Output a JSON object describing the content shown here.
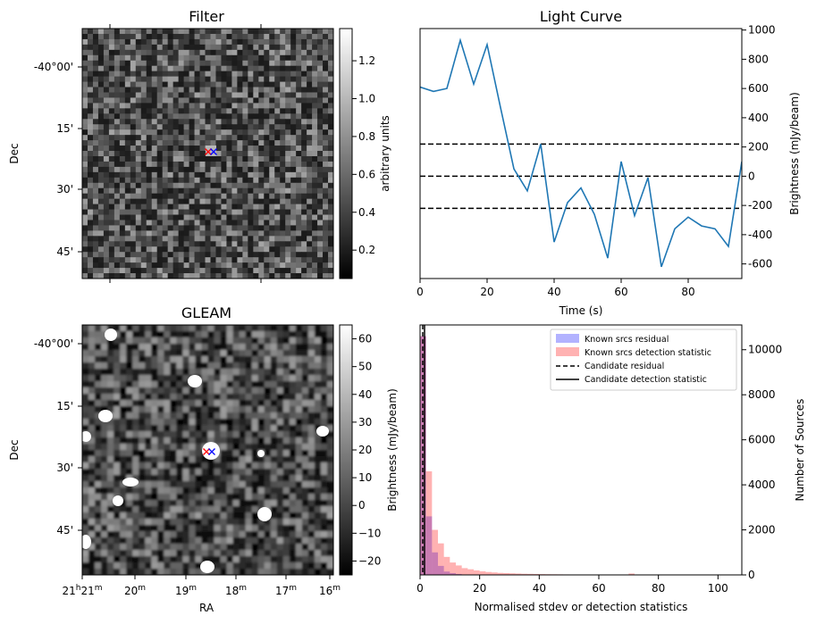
{
  "chart_data": [
    {
      "type": "heatmap",
      "title": "Filter",
      "xlabel": "",
      "ylabel": "Dec",
      "y_ticks": [
        "-40°00'",
        "15'",
        "30'",
        "45'"
      ],
      "colorbar": {
        "label": "arbitrary units",
        "range": [
          0.05,
          1.37
        ],
        "ticks": [
          "0.2",
          "0.4",
          "0.6",
          "0.8",
          "1.0",
          "1.2"
        ],
        "colormap": "gray"
      },
      "markers": [
        {
          "symbol": "x",
          "color": "#ff0000"
        },
        {
          "symbol": "x",
          "color": "#0000ff"
        }
      ]
    },
    {
      "type": "line",
      "title": "Light Curve",
      "xlabel": "Time (s)",
      "ylabel": "Brightness (mJy/beam)",
      "xlim": [
        0,
        96
      ],
      "ylim": [
        -700,
        1010
      ],
      "x_ticks": [
        "0",
        "20",
        "40",
        "60",
        "80"
      ],
      "y_ticks": [
        "-600",
        "-400",
        "-200",
        "0",
        "200",
        "400",
        "600",
        "800",
        "1000"
      ],
      "series": [
        {
          "color": "#1f77b4",
          "x": [
            0,
            4,
            8,
            12,
            16,
            20,
            24,
            28,
            32,
            36,
            40,
            44,
            48,
            52,
            56,
            60,
            64,
            68,
            72,
            76,
            80,
            84,
            88,
            92,
            96
          ],
          "y": [
            610,
            580,
            600,
            930,
            630,
            900,
            470,
            50,
            -100,
            220,
            -450,
            -180,
            -80,
            -260,
            -560,
            100,
            -270,
            -10,
            -620,
            -360,
            -280,
            -340,
            -360,
            -480,
            100
          ]
        }
      ],
      "hlines": [
        {
          "y": 220,
          "style": "dashed",
          "color": "#000000"
        },
        {
          "y": 0,
          "style": "dashed",
          "color": "#000000"
        },
        {
          "y": -220,
          "style": "dashed",
          "color": "#000000"
        }
      ]
    },
    {
      "type": "heatmap",
      "title": "GLEAM",
      "xlabel": "RA",
      "ylabel": "Dec",
      "y_ticks": [
        "-40°00'",
        "15'",
        "30'",
        "45'"
      ],
      "x_ticks": [
        {
          "h": "21",
          "m": "21"
        },
        {
          "h": "",
          "m": "20"
        },
        {
          "h": "",
          "m": "19"
        },
        {
          "h": "",
          "m": "18"
        },
        {
          "h": "",
          "m": "17"
        },
        {
          "h": "",
          "m": "16"
        }
      ],
      "colorbar": {
        "label": "Brightness (mJy/beam)",
        "range": [
          -25,
          65
        ],
        "ticks": [
          "−20",
          "−10",
          "0",
          "10",
          "20",
          "30",
          "40",
          "50",
          "60"
        ],
        "colormap": "gray"
      },
      "markers": [
        {
          "symbol": "x",
          "color": "#ff0000"
        },
        {
          "symbol": "x",
          "color": "#0000ff"
        }
      ]
    },
    {
      "type": "bar",
      "title": "",
      "xlabel": "Normalised stdev or detection statistics",
      "ylabel": "Number of Sources",
      "xlim": [
        0,
        108
      ],
      "ylim": [
        0,
        11100
      ],
      "x_ticks": [
        "0",
        "20",
        "40",
        "60",
        "80",
        "100"
      ],
      "y_ticks": [
        "0",
        "2000",
        "4000",
        "6000",
        "8000",
        "10000"
      ],
      "bin_width": 2,
      "series": [
        {
          "name": "Known srcs residual",
          "color": "#0000ff",
          "bin_starts": [
            0,
            2,
            4,
            6,
            8,
            10,
            12,
            14,
            16,
            18,
            20
          ],
          "values": [
            10600,
            2600,
            1000,
            400,
            150,
            80,
            40,
            20,
            10,
            5,
            3
          ]
        },
        {
          "name": "Known srcs detection statistic",
          "color": "#ff0000",
          "bin_starts": [
            0,
            2,
            4,
            6,
            8,
            10,
            12,
            14,
            16,
            18,
            20,
            22,
            24,
            26,
            28,
            30,
            32,
            34,
            36,
            38,
            40,
            42,
            44,
            46,
            48,
            50,
            52,
            54,
            56,
            58,
            70
          ],
          "values": [
            10600,
            4600,
            2000,
            1400,
            800,
            550,
            420,
            300,
            250,
            200,
            160,
            130,
            110,
            90,
            80,
            70,
            60,
            50,
            45,
            40,
            35,
            30,
            28,
            25,
            22,
            20,
            18,
            15,
            12,
            10,
            60
          ]
        }
      ],
      "vlines": [
        {
          "name": "Candidate residual",
          "x": 0.9,
          "style": "dashed",
          "color": "#000000"
        },
        {
          "name": "Candidate detection statistic",
          "x": 1.5,
          "style": "solid",
          "color": "#000000"
        }
      ],
      "legend_position": "top-right"
    }
  ]
}
